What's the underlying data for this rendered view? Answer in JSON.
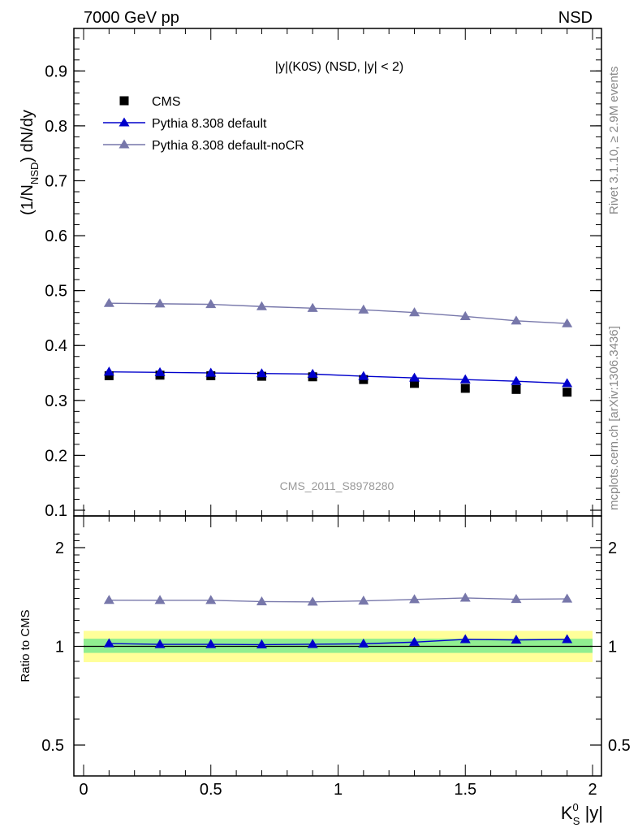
{
  "header": {
    "left": "7000 GeV pp",
    "right": "NSD"
  },
  "side_label_1": "Rivet 3.1.10, ≥ 2.9M events",
  "side_label_2": "mcplots.cern.ch [arXiv:1306.3436]",
  "watermark": "CMS_2011_S8978280",
  "plot_title": "|y|(K0S) (NSD, |y| < 2)",
  "main_ylabel": "(1/N_NSD) dN/dy",
  "ratio_ylabel": "Ratio to CMS",
  "xlabel": "K_S^0 |y|",
  "colors": {
    "data": "#000000",
    "default": "#0000cc",
    "nocr": "#7777aa",
    "band_inner": "#90ee90",
    "band_outer": "#ffff99"
  },
  "chart_data": [
    {
      "type": "scatter",
      "panel": "main",
      "x": [
        0.1,
        0.3,
        0.5,
        0.7,
        0.9,
        1.1,
        1.3,
        1.5,
        1.7,
        1.9
      ],
      "xlim": [
        -0.075,
        2.05
      ],
      "ylim": [
        0.09,
        0.99
      ],
      "xticks": [
        "0",
        "0.5",
        "1",
        "1.5",
        "2"
      ],
      "yticks": [
        "0.1",
        "0.2",
        "0.3",
        "0.4",
        "0.5",
        "0.6",
        "0.7",
        "0.8",
        "0.9"
      ],
      "legend_position": "top-left",
      "series": [
        {
          "name": "CMS",
          "marker": "square",
          "values": [
            0.345,
            0.346,
            0.345,
            0.344,
            0.343,
            0.338,
            0.331,
            0.322,
            0.32,
            0.315
          ]
        },
        {
          "name": "Pythia 8.308 default",
          "marker": "triangle",
          "values": [
            0.352,
            0.351,
            0.35,
            0.349,
            0.348,
            0.344,
            0.341,
            0.338,
            0.335,
            0.331
          ]
        },
        {
          "name": "Pythia 8.308 default-noCR",
          "marker": "triangle",
          "values": [
            0.477,
            0.476,
            0.475,
            0.471,
            0.468,
            0.465,
            0.46,
            0.453,
            0.445,
            0.44
          ]
        }
      ]
    },
    {
      "type": "line",
      "panel": "ratio",
      "x": [
        0.1,
        0.3,
        0.5,
        0.7,
        0.9,
        1.1,
        1.3,
        1.5,
        1.7,
        1.9
      ],
      "ylim": [
        0.4,
        2.3
      ],
      "yscale": "log",
      "yticks": [
        "0.5",
        "1",
        "2"
      ],
      "reference": 1.0,
      "band_inner": [
        0.955,
        1.055
      ],
      "band_outer": [
        0.895,
        1.115
      ],
      "series": [
        {
          "name": "Pythia 8.308 default",
          "values": [
            1.02,
            1.014,
            1.014,
            1.012,
            1.015,
            1.018,
            1.03,
            1.05,
            1.046,
            1.05
          ]
        },
        {
          "name": "Pythia 8.308 default-noCR",
          "values": [
            1.383,
            1.382,
            1.382,
            1.369,
            1.366,
            1.376,
            1.39,
            1.405,
            1.392,
            1.396
          ]
        }
      ]
    }
  ]
}
